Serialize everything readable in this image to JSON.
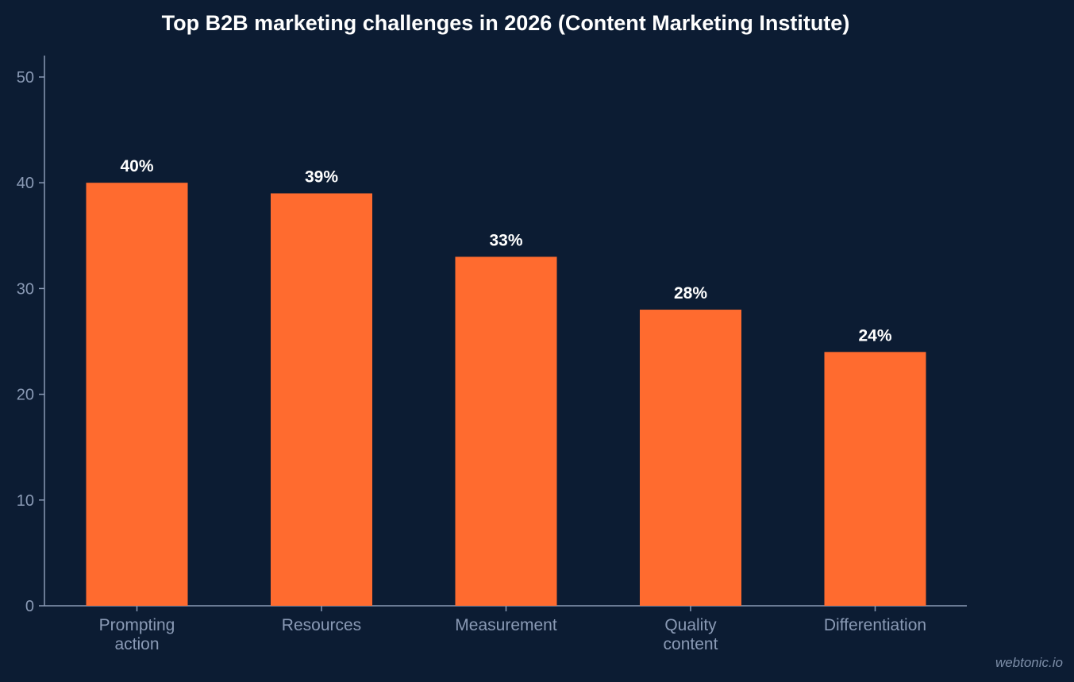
{
  "chart_data": {
    "type": "bar",
    "title": "Top B2B marketing challenges in 2026 (Content Marketing Institute)",
    "categories": [
      [
        "Prompting",
        "action"
      ],
      [
        "Resources"
      ],
      [
        "Measurement"
      ],
      [
        "Quality",
        "content"
      ],
      [
        "Differentiation"
      ]
    ],
    "values": [
      40,
      39,
      33,
      28,
      24
    ],
    "value_labels": [
      "40%",
      "39%",
      "33%",
      "28%",
      "24%"
    ],
    "ylim": [
      0,
      52
    ],
    "yticks": [
      0,
      10,
      20,
      30,
      40,
      50
    ],
    "xlabel": "",
    "ylabel": "",
    "grid": false,
    "bar_color": "#ff6b2f",
    "axis_color": "#8a9ab5",
    "background": "#0c1c33"
  },
  "watermark": "webtonic.io"
}
